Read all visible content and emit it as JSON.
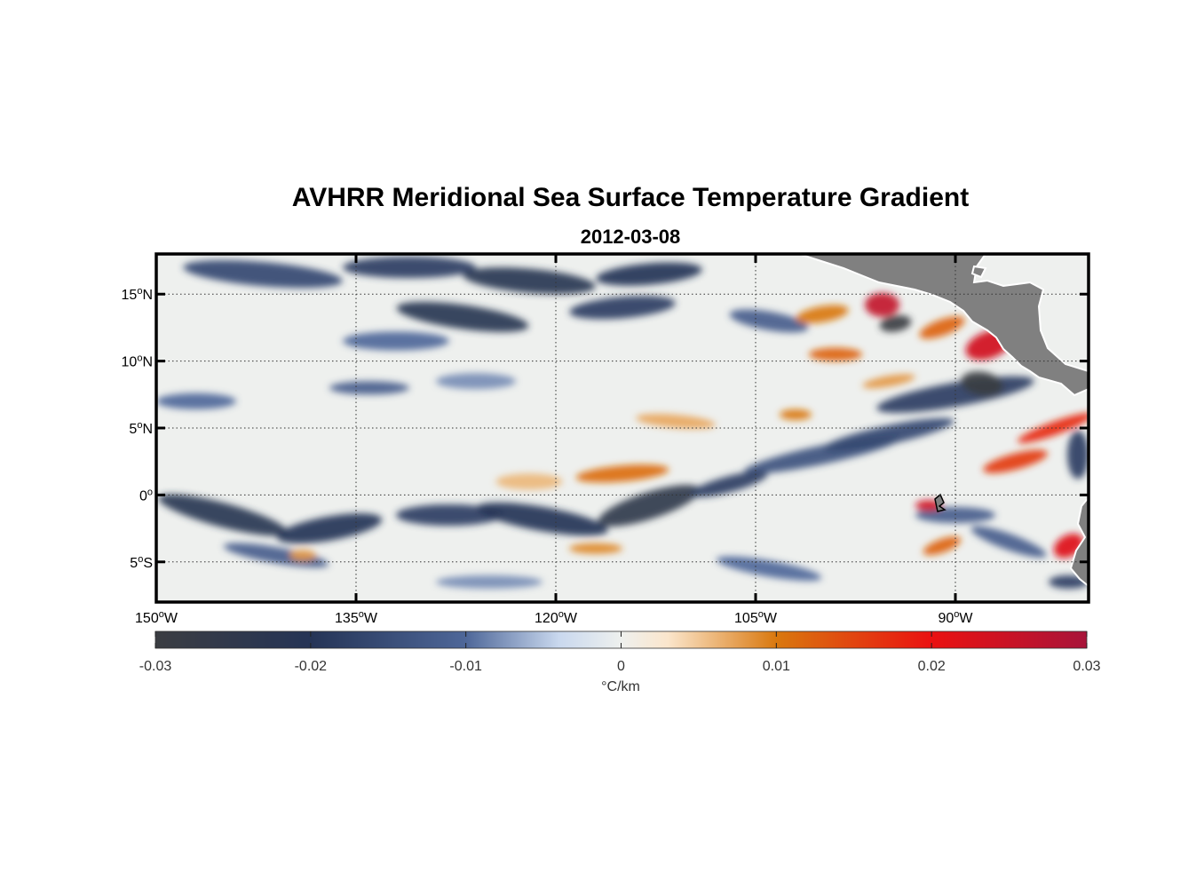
{
  "title": "AVHRR Meridional Sea Surface Temperature Gradient",
  "subtitle": "2012-03-08",
  "map": {
    "projection": "equirectangular",
    "lon_range": [
      -150,
      -80
    ],
    "lat_range": [
      -8,
      18
    ],
    "grid": "dotted",
    "land_color": "#808080"
  },
  "lat_ticks": [
    {
      "lat": 15,
      "num": "15",
      "hemi": "N"
    },
    {
      "lat": 10,
      "num": "10",
      "hemi": "N"
    },
    {
      "lat": 5,
      "num": "5",
      "hemi": "N"
    },
    {
      "lat": 0,
      "num": "0",
      "hemi": ""
    },
    {
      "lat": -5,
      "num": "5",
      "hemi": "S"
    }
  ],
  "lon_ticks": [
    {
      "lon": -150,
      "num": "150",
      "hemi": "W"
    },
    {
      "lon": -135,
      "num": "135",
      "hemi": "W"
    },
    {
      "lon": -120,
      "num": "120",
      "hemi": "W"
    },
    {
      "lon": -105,
      "num": "105",
      "hemi": "W"
    },
    {
      "lon": -90,
      "num": "90",
      "hemi": "W"
    }
  ],
  "colorbar": {
    "min": -0.03,
    "max": 0.03,
    "ticks": [
      {
        "value": -0.03,
        "label": "-0.03"
      },
      {
        "value": -0.02,
        "label": "-0.02"
      },
      {
        "value": -0.01,
        "label": "-0.01"
      },
      {
        "value": 0,
        "label": "0"
      },
      {
        "value": 0.01,
        "label": "0.01"
      },
      {
        "value": 0.02,
        "label": "0.02"
      },
      {
        "value": 0.03,
        "label": "0.03"
      }
    ],
    "unit": "°C/km",
    "stops": [
      {
        "value": -0.03,
        "color": "#3b3d42"
      },
      {
        "value": -0.02,
        "color": "#253456"
      },
      {
        "value": -0.01,
        "color": "#4e6799"
      },
      {
        "value": -0.004,
        "color": "#c9d8ee"
      },
      {
        "value": 0,
        "color": "#eef0ee"
      },
      {
        "value": 0.003,
        "color": "#fbe6cc"
      },
      {
        "value": 0.01,
        "color": "#d9780e"
      },
      {
        "value": 0.02,
        "color": "#ea1111"
      },
      {
        "value": 0.03,
        "color": "#a8143a"
      }
    ]
  },
  "features": [
    {
      "name": "band-north-west",
      "lon": -142,
      "lat": 16.5,
      "rx": 6,
      "ry": 0.9,
      "value": -0.016,
      "rot": 5
    },
    {
      "name": "band-north-1",
      "lon": -131,
      "lat": 17.0,
      "rx": 5,
      "ry": 0.8,
      "value": -0.018,
      "rot": 0
    },
    {
      "name": "band-north-2",
      "lon": -122,
      "lat": 16.0,
      "rx": 5,
      "ry": 0.9,
      "value": -0.022,
      "rot": 5
    },
    {
      "name": "band-north-3",
      "lon": -113,
      "lat": 16.5,
      "rx": 4,
      "ry": 0.8,
      "value": -0.02,
      "rot": -5
    },
    {
      "name": "band-14n",
      "lon": -127,
      "lat": 13.3,
      "rx": 5,
      "ry": 0.9,
      "value": -0.022,
      "rot": 8
    },
    {
      "name": "band-14n-east",
      "lon": -115,
      "lat": 14.0,
      "rx": 4,
      "ry": 0.8,
      "value": -0.018,
      "rot": -5
    },
    {
      "name": "band-13n-far",
      "lon": -104,
      "lat": 13.0,
      "rx": 3,
      "ry": 0.7,
      "value": -0.012,
      "rot": 10
    },
    {
      "name": "band-11n",
      "lon": -132,
      "lat": 11.5,
      "rx": 4,
      "ry": 0.7,
      "value": -0.01,
      "rot": 0
    },
    {
      "name": "band-8n",
      "lon": -134,
      "lat": 8.0,
      "rx": 3,
      "ry": 0.5,
      "value": -0.012,
      "rot": 0
    },
    {
      "name": "band-8n-east",
      "lon": -126,
      "lat": 8.5,
      "rx": 3,
      "ry": 0.6,
      "value": -0.008,
      "rot": 0
    },
    {
      "name": "band-7n",
      "lon": -147,
      "lat": 7.0,
      "rx": 3,
      "ry": 0.6,
      "value": -0.01,
      "rot": 0
    },
    {
      "name": "band-3n",
      "lon": -100,
      "lat": 3.0,
      "rx": 6,
      "ry": 0.7,
      "value": -0.014,
      "rot": -12
    },
    {
      "name": "band-4n",
      "lon": -95,
      "lat": 4.5,
      "rx": 5,
      "ry": 0.7,
      "value": -0.016,
      "rot": -12
    },
    {
      "name": "band-7n-east",
      "lon": -90,
      "lat": 7.5,
      "rx": 6,
      "ry": 0.9,
      "value": -0.018,
      "rot": -10
    },
    {
      "name": "dark-eddy-8n",
      "lon": -88,
      "lat": 8.3,
      "rx": 1.6,
      "ry": 0.9,
      "value": -0.03,
      "rot": 10
    },
    {
      "name": "dark-eddy-12n",
      "lon": -94.5,
      "lat": 12.8,
      "rx": 1.2,
      "ry": 0.6,
      "value": -0.03,
      "rot": -10
    },
    {
      "name": "band-south-1",
      "lon": -145,
      "lat": -1.5,
      "rx": 5,
      "ry": 0.9,
      "value": -0.022,
      "rot": 15
    },
    {
      "name": "band-south-2",
      "lon": -137,
      "lat": -2.5,
      "rx": 4,
      "ry": 0.9,
      "value": -0.02,
      "rot": -10
    },
    {
      "name": "band-south-3",
      "lon": -128,
      "lat": -1.5,
      "rx": 4,
      "ry": 0.8,
      "value": -0.018,
      "rot": 0
    },
    {
      "name": "band-south-4",
      "lon": -121,
      "lat": -1.8,
      "rx": 5,
      "ry": 0.9,
      "value": -0.02,
      "rot": 10
    },
    {
      "name": "band-south-5",
      "lon": -113,
      "lat": -0.8,
      "rx": 4,
      "ry": 1.0,
      "value": -0.025,
      "rot": -18
    },
    {
      "name": "band-south-6",
      "lon": -107,
      "lat": 0.8,
      "rx": 3,
      "ry": 0.6,
      "value": -0.018,
      "rot": -15
    },
    {
      "name": "band-south-7",
      "lon": -141,
      "lat": -4.5,
      "rx": 4,
      "ry": 0.6,
      "value": -0.012,
      "rot": 10
    },
    {
      "name": "band-far-south",
      "lon": -125,
      "lat": -6.5,
      "rx": 4,
      "ry": 0.5,
      "value": -0.008,
      "rot": 0
    },
    {
      "name": "band-far-se",
      "lon": -104,
      "lat": -5.5,
      "rx": 4,
      "ry": 0.6,
      "value": -0.01,
      "rot": 10
    },
    {
      "name": "band-se-1",
      "lon": -90,
      "lat": -1.5,
      "rx": 3,
      "ry": 0.6,
      "value": -0.012,
      "rot": 0
    },
    {
      "name": "band-se-2",
      "lon": -86,
      "lat": -3.5,
      "rx": 3,
      "ry": 0.6,
      "value": -0.012,
      "rot": 20
    },
    {
      "name": "band-se-3",
      "lon": -81.5,
      "lat": -6.5,
      "rx": 1.5,
      "ry": 0.5,
      "value": -0.018,
      "rot": 0
    },
    {
      "name": "band-east-edge",
      "lon": -80.8,
      "lat": 3.0,
      "rx": 0.8,
      "ry": 1.8,
      "value": -0.018,
      "rot": 0
    },
    {
      "name": "warm-1n",
      "lon": -115,
      "lat": 1.6,
      "rx": 3.5,
      "ry": 0.6,
      "value": 0.011,
      "rot": -5
    },
    {
      "name": "warm-2n",
      "lon": -122,
      "lat": 1.0,
      "rx": 2.5,
      "ry": 0.6,
      "value": 0.006,
      "rot": 0
    },
    {
      "name": "warm-5n",
      "lon": -111,
      "lat": 5.5,
      "rx": 3,
      "ry": 0.5,
      "value": 0.007,
      "rot": 5
    },
    {
      "name": "warm-14n-east",
      "lon": -100,
      "lat": 13.5,
      "rx": 2,
      "ry": 0.6,
      "value": 0.01,
      "rot": -10
    },
    {
      "name": "warm-11n-east",
      "lon": -99,
      "lat": 10.5,
      "rx": 2,
      "ry": 0.5,
      "value": 0.012,
      "rot": 0
    },
    {
      "name": "warm-12n-coast",
      "lon": -91,
      "lat": 12.5,
      "rx": 1.8,
      "ry": 0.6,
      "value": 0.012,
      "rot": -20
    },
    {
      "name": "hot-eddy-14n",
      "lon": -95.5,
      "lat": 14.2,
      "rx": 1.3,
      "ry": 0.9,
      "value": 0.026,
      "rot": 0
    },
    {
      "name": "hot-eddy-11n",
      "lon": -87.5,
      "lat": 11.2,
      "rx": 1.8,
      "ry": 1.0,
      "value": 0.024,
      "rot": -20
    },
    {
      "name": "warm-6n-east",
      "lon": -82.5,
      "lat": 5.0,
      "rx": 3,
      "ry": 0.5,
      "value": 0.018,
      "rot": -20
    },
    {
      "name": "warm-2n-east",
      "lon": -85.5,
      "lat": 2.5,
      "rx": 2.5,
      "ry": 0.6,
      "value": 0.016,
      "rot": -15
    },
    {
      "name": "hot-eddy-equator",
      "lon": -92,
      "lat": -0.8,
      "rx": 1.0,
      "ry": 0.4,
      "value": 0.024,
      "rot": 0
    },
    {
      "name": "hot-eddy-coast-south",
      "lon": -81.5,
      "lat": -3.8,
      "rx": 1.2,
      "ry": 0.8,
      "value": 0.022,
      "rot": -30
    },
    {
      "name": "warm-south-1",
      "lon": -117,
      "lat": -4.0,
      "rx": 2,
      "ry": 0.4,
      "value": 0.009,
      "rot": 0
    },
    {
      "name": "warm-south-2",
      "lon": -91,
      "lat": -3.8,
      "rx": 1.5,
      "ry": 0.5,
      "value": 0.012,
      "rot": -20
    },
    {
      "name": "warm-south-3",
      "lon": -139,
      "lat": -4.5,
      "rx": 1,
      "ry": 0.4,
      "value": 0.008,
      "rot": 0
    },
    {
      "name": "warm-7n-east",
      "lon": -102,
      "lat": 6.0,
      "rx": 1.2,
      "ry": 0.4,
      "value": 0.01,
      "rot": 0
    },
    {
      "name": "warm-9n-east",
      "lon": -95,
      "lat": 8.5,
      "rx": 2,
      "ry": 0.4,
      "value": 0.008,
      "rot": -10
    }
  ]
}
